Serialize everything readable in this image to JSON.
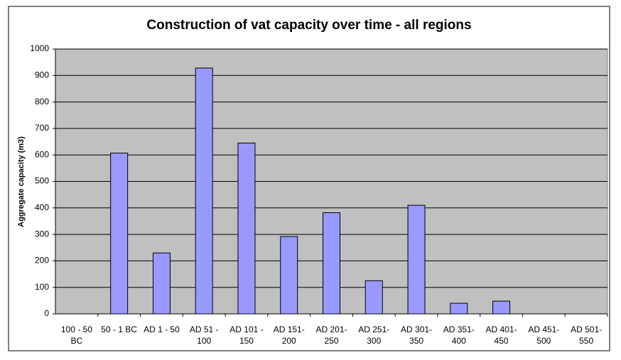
{
  "chart_data": {
    "type": "bar",
    "title": "Construction of vat capacity over time - all regions",
    "y_label": "Aggregate capacity (m3)",
    "categories": [
      "100 - 50 BC",
      "50 - 1 BC",
      "AD 1 - 50",
      "AD 51 - 100",
      "AD 101 - 150",
      "AD 151- 200",
      "AD 201- 250",
      "AD 251- 300",
      "AD 301- 350",
      "AD 351- 400",
      "AD 401- 450",
      "AD 451- 500",
      "AD 501- 550"
    ],
    "values": [
      0,
      607,
      230,
      928,
      645,
      292,
      382,
      125,
      410,
      40,
      48,
      0,
      0
    ],
    "color": "#9999ff",
    "plot_background": "#c0c0c0",
    "ylim": [
      0,
      1000
    ],
    "yticks": [
      0,
      100,
      200,
      300,
      400,
      500,
      600,
      700,
      800,
      900,
      1000
    ],
    "grid": true
  }
}
